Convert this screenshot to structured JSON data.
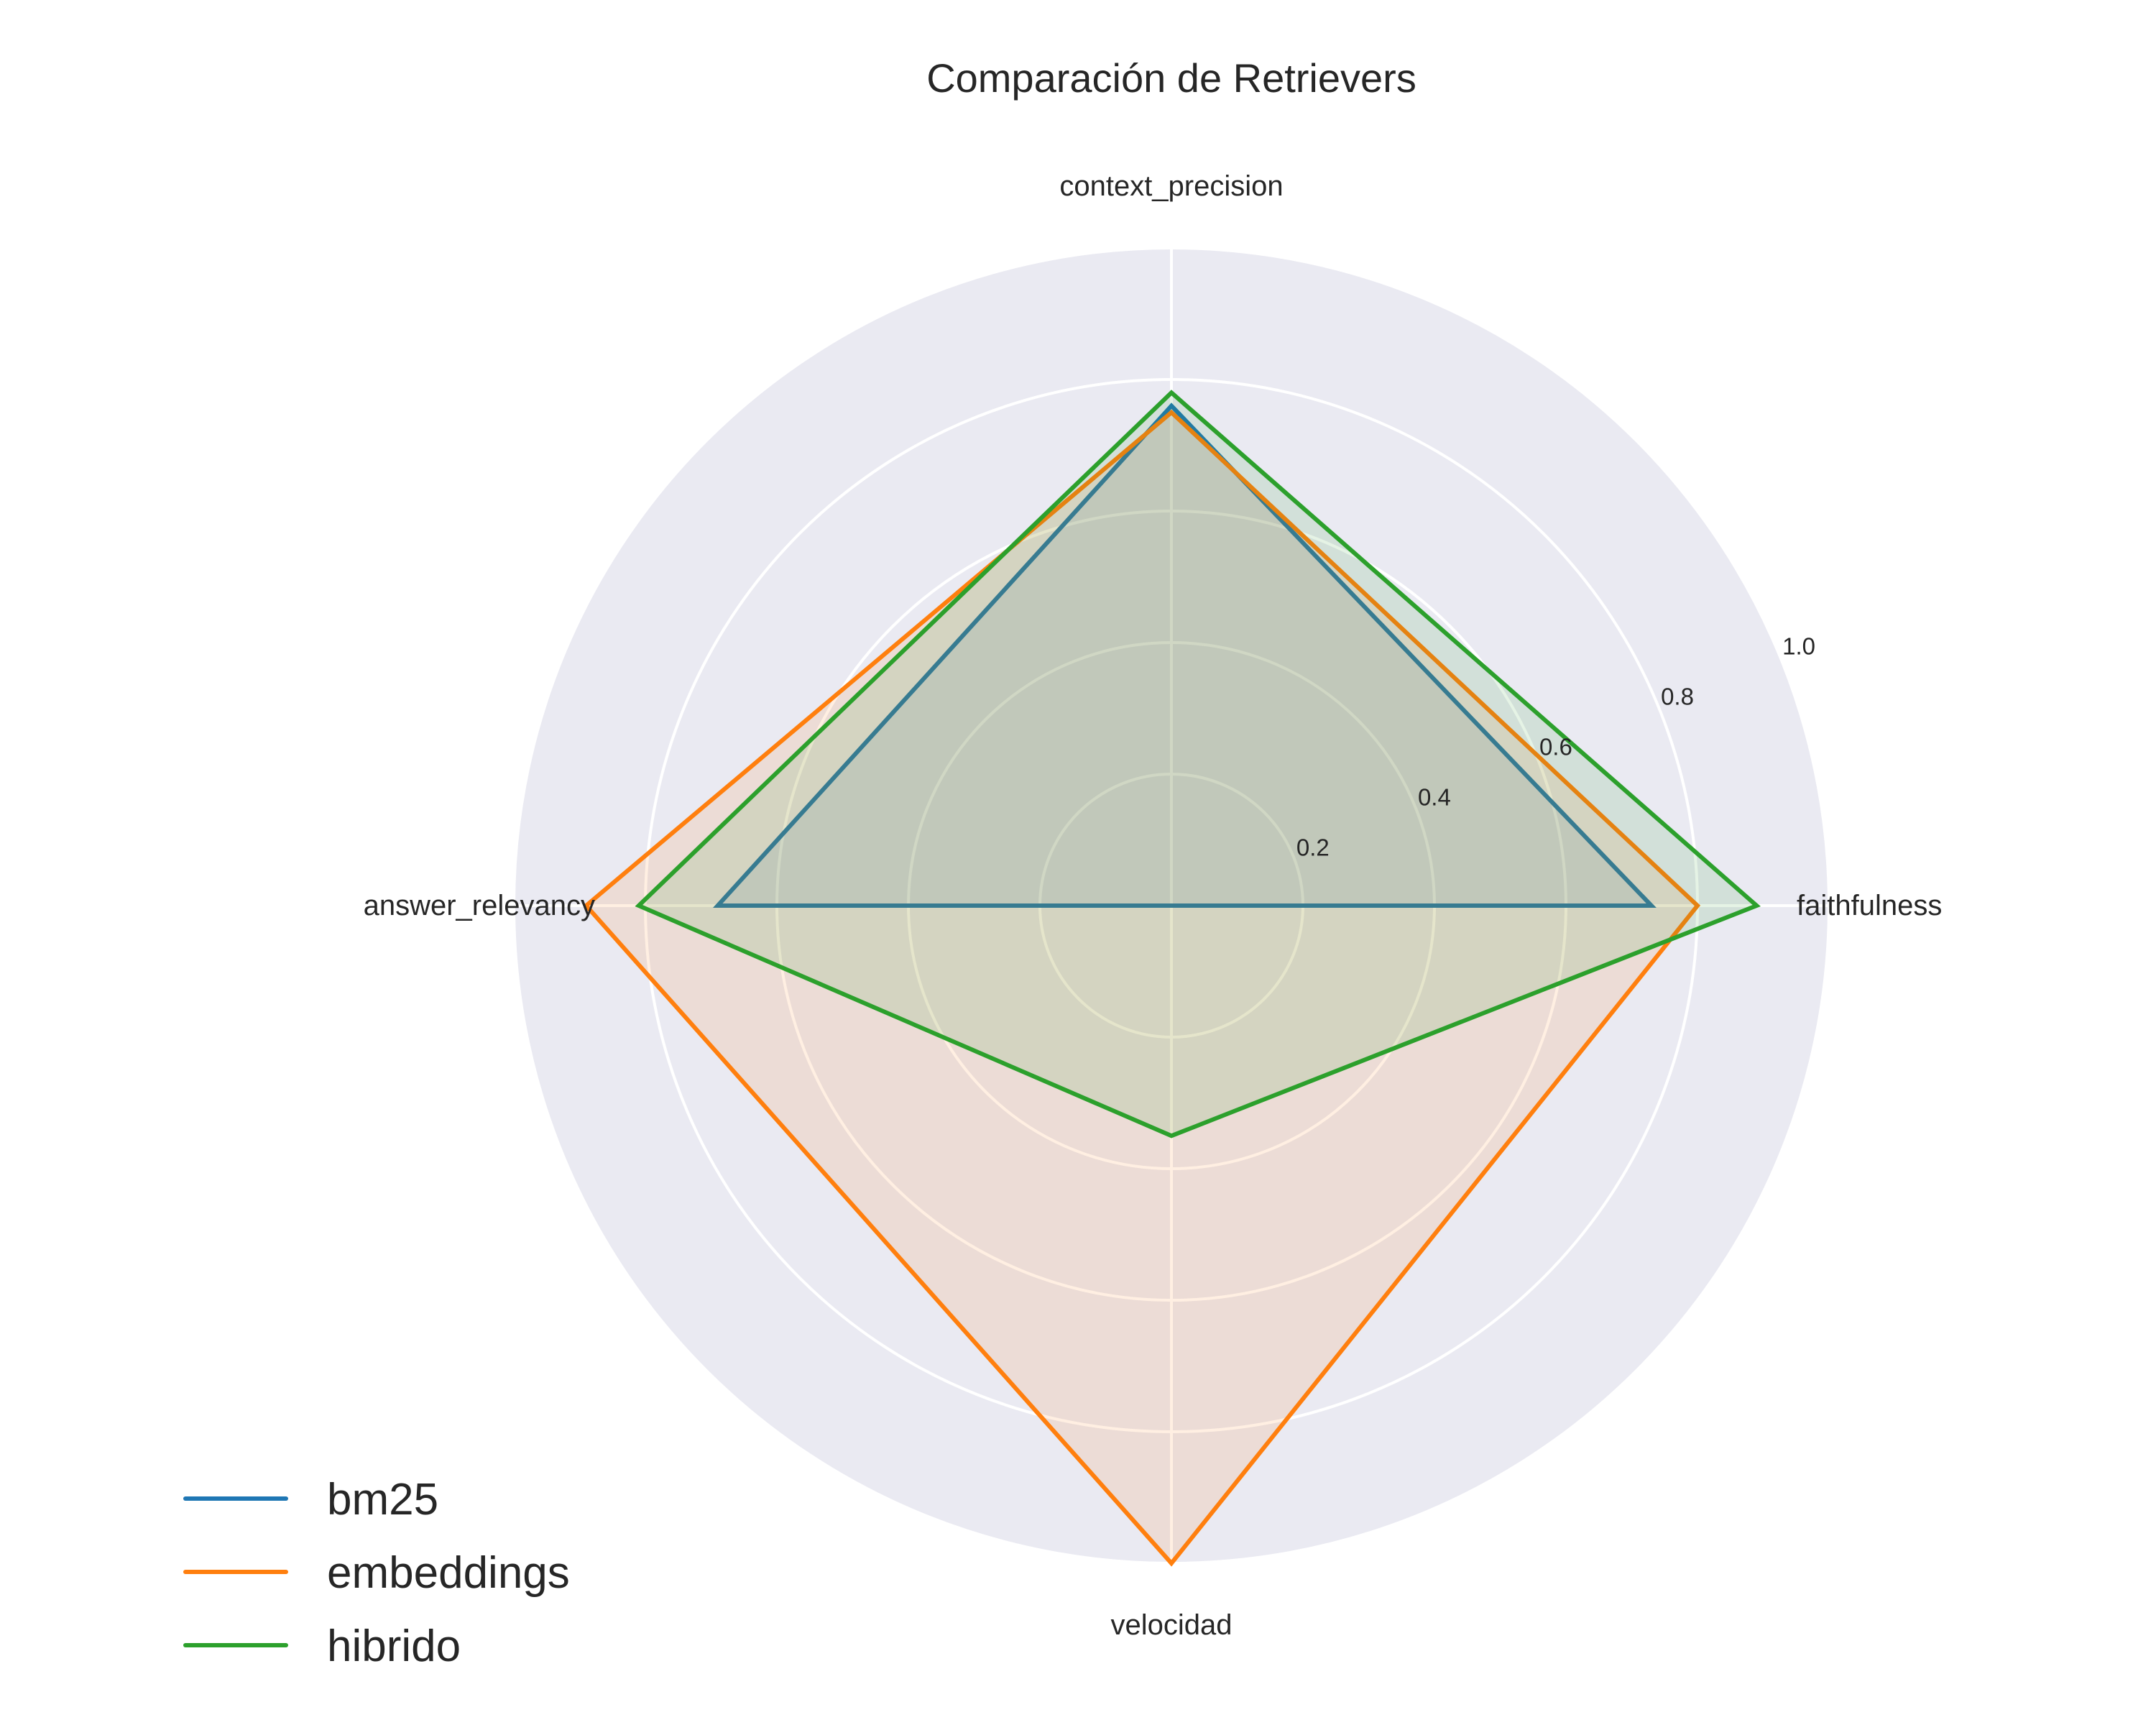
{
  "chart_data": {
    "type": "radar",
    "title": "Comparación de Retrievers",
    "axes": [
      "context_precision",
      "faithfulness",
      "velocidad",
      "answer_relevancy"
    ],
    "r_range": [
      0,
      1.0
    ],
    "r_ticks": [
      0.2,
      0.4,
      0.6,
      0.8,
      1.0
    ],
    "r_tick_labels": [
      "0.2",
      "0.4",
      "0.6",
      "0.8",
      "1.0"
    ],
    "grid": true,
    "legend_position": "bottom-left",
    "series": [
      {
        "name": "bm25",
        "color": "#1f77b4",
        "values": [
          0.76,
          0.73,
          0.0,
          0.69
        ]
      },
      {
        "name": "embeddings",
        "color": "#ff7f0e",
        "values": [
          0.75,
          0.8,
          1.0,
          0.89
        ]
      },
      {
        "name": "hibrido",
        "color": "#2ca02c",
        "values": [
          0.78,
          0.89,
          0.35,
          0.81
        ]
      }
    ]
  }
}
